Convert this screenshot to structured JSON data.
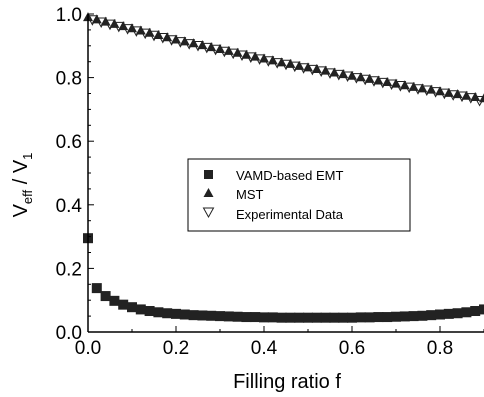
{
  "chart_data": {
    "type": "scatter",
    "xlabel": "Filling ratio f",
    "ylabel": {
      "main": "V",
      "sub1": "eff",
      "slash": " / V",
      "sub2": "1"
    },
    "xlim": [
      0.0,
      0.9
    ],
    "ylim": [
      0.0,
      1.0
    ],
    "xticks": [
      0.0,
      0.2,
      0.4,
      0.6,
      0.8
    ],
    "xtick_labels": [
      "0.0",
      "0.2",
      "0.4",
      "0.6",
      "0.8"
    ],
    "yticks": [
      0.0,
      0.2,
      0.4,
      0.6,
      0.8,
      1.0
    ],
    "ytick_labels": [
      "0.0",
      "0.2",
      "0.4",
      "0.6",
      "0.8",
      "1.0"
    ],
    "grid": false,
    "legend_position": "center-right",
    "series": [
      {
        "name": "VAMD-based EMT",
        "marker": "filled-square",
        "color": "#222222",
        "x": [
          0.0,
          0.02,
          0.04,
          0.06,
          0.08,
          0.1,
          0.12,
          0.14,
          0.16,
          0.18,
          0.2,
          0.22,
          0.24,
          0.26,
          0.28,
          0.3,
          0.32,
          0.34,
          0.36,
          0.38,
          0.4,
          0.42,
          0.44,
          0.46,
          0.48,
          0.5,
          0.52,
          0.54,
          0.56,
          0.58,
          0.6,
          0.62,
          0.64,
          0.66,
          0.68,
          0.7,
          0.72,
          0.74,
          0.76,
          0.78,
          0.8,
          0.82,
          0.84,
          0.86,
          0.88,
          0.9
        ],
        "y": [
          0.295,
          0.138,
          0.113,
          0.098,
          0.086,
          0.078,
          0.071,
          0.066,
          0.062,
          0.059,
          0.057,
          0.055,
          0.053,
          0.052,
          0.051,
          0.05,
          0.049,
          0.048,
          0.047,
          0.047,
          0.046,
          0.046,
          0.045,
          0.045,
          0.045,
          0.045,
          0.045,
          0.045,
          0.045,
          0.045,
          0.045,
          0.046,
          0.046,
          0.047,
          0.047,
          0.048,
          0.049,
          0.05,
          0.051,
          0.053,
          0.055,
          0.057,
          0.059,
          0.062,
          0.066,
          0.071
        ]
      },
      {
        "name": "MST",
        "marker": "filled-triangle-up",
        "color": "#222222",
        "x": [
          0.0,
          0.02,
          0.04,
          0.06,
          0.08,
          0.1,
          0.12,
          0.14,
          0.16,
          0.18,
          0.2,
          0.22,
          0.24,
          0.26,
          0.28,
          0.3,
          0.32,
          0.34,
          0.36,
          0.38,
          0.4,
          0.42,
          0.44,
          0.46,
          0.48,
          0.5,
          0.52,
          0.54,
          0.56,
          0.58,
          0.6,
          0.62,
          0.64,
          0.66,
          0.68,
          0.7,
          0.72,
          0.74,
          0.76,
          0.78,
          0.8,
          0.82,
          0.84,
          0.86,
          0.88,
          0.9
        ],
        "y": [
          0.99,
          0.983,
          0.976,
          0.969,
          0.962,
          0.955,
          0.948,
          0.941,
          0.934,
          0.927,
          0.92,
          0.914,
          0.908,
          0.902,
          0.896,
          0.89,
          0.884,
          0.878,
          0.872,
          0.866,
          0.86,
          0.854,
          0.848,
          0.843,
          0.837,
          0.832,
          0.827,
          0.822,
          0.816,
          0.811,
          0.806,
          0.801,
          0.796,
          0.791,
          0.786,
          0.781,
          0.776,
          0.771,
          0.766,
          0.762,
          0.757,
          0.752,
          0.748,
          0.743,
          0.739,
          0.735
        ]
      },
      {
        "name": "Experimental Data",
        "marker": "open-triangle-down",
        "color": "#222222",
        "x": [
          0.01,
          0.03,
          0.05,
          0.07,
          0.09,
          0.11,
          0.13,
          0.15,
          0.17,
          0.19,
          0.21,
          0.23,
          0.25,
          0.27,
          0.29,
          0.31,
          0.33,
          0.35,
          0.37,
          0.39,
          0.41,
          0.43,
          0.45,
          0.47,
          0.49,
          0.51,
          0.53,
          0.55,
          0.57,
          0.59,
          0.61,
          0.63,
          0.65,
          0.67,
          0.69,
          0.71,
          0.73,
          0.75,
          0.77,
          0.79,
          0.81,
          0.83,
          0.85,
          0.87,
          0.89
        ],
        "y": [
          0.982,
          0.975,
          0.968,
          0.961,
          0.954,
          0.947,
          0.94,
          0.933,
          0.926,
          0.919,
          0.913,
          0.907,
          0.901,
          0.895,
          0.889,
          0.883,
          0.877,
          0.871,
          0.865,
          0.859,
          0.853,
          0.847,
          0.842,
          0.836,
          0.831,
          0.826,
          0.821,
          0.815,
          0.81,
          0.805,
          0.8,
          0.795,
          0.79,
          0.785,
          0.78,
          0.775,
          0.77,
          0.765,
          0.761,
          0.756,
          0.751,
          0.746,
          0.742,
          0.737,
          0.728
        ]
      }
    ]
  }
}
